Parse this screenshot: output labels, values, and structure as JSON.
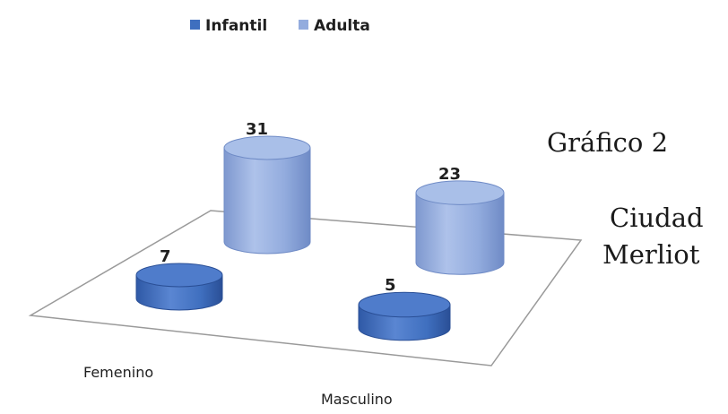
{
  "side_title": {
    "line1": "Gráfico 2",
    "line2": "Ciudad",
    "line3": "Merliot"
  },
  "chart_data": {
    "type": "bar",
    "categories": [
      "Femenino",
      "Masculino"
    ],
    "series": [
      {
        "name": "Infantil",
        "values": [
          7,
          5
        ],
        "color": "#3f6fbf"
      },
      {
        "name": "Adulta",
        "values": [
          31,
          23
        ],
        "color": "#93acde"
      }
    ],
    "data_labels": true,
    "legend": "top",
    "grid": false,
    "ylim": [
      0,
      31
    ]
  }
}
